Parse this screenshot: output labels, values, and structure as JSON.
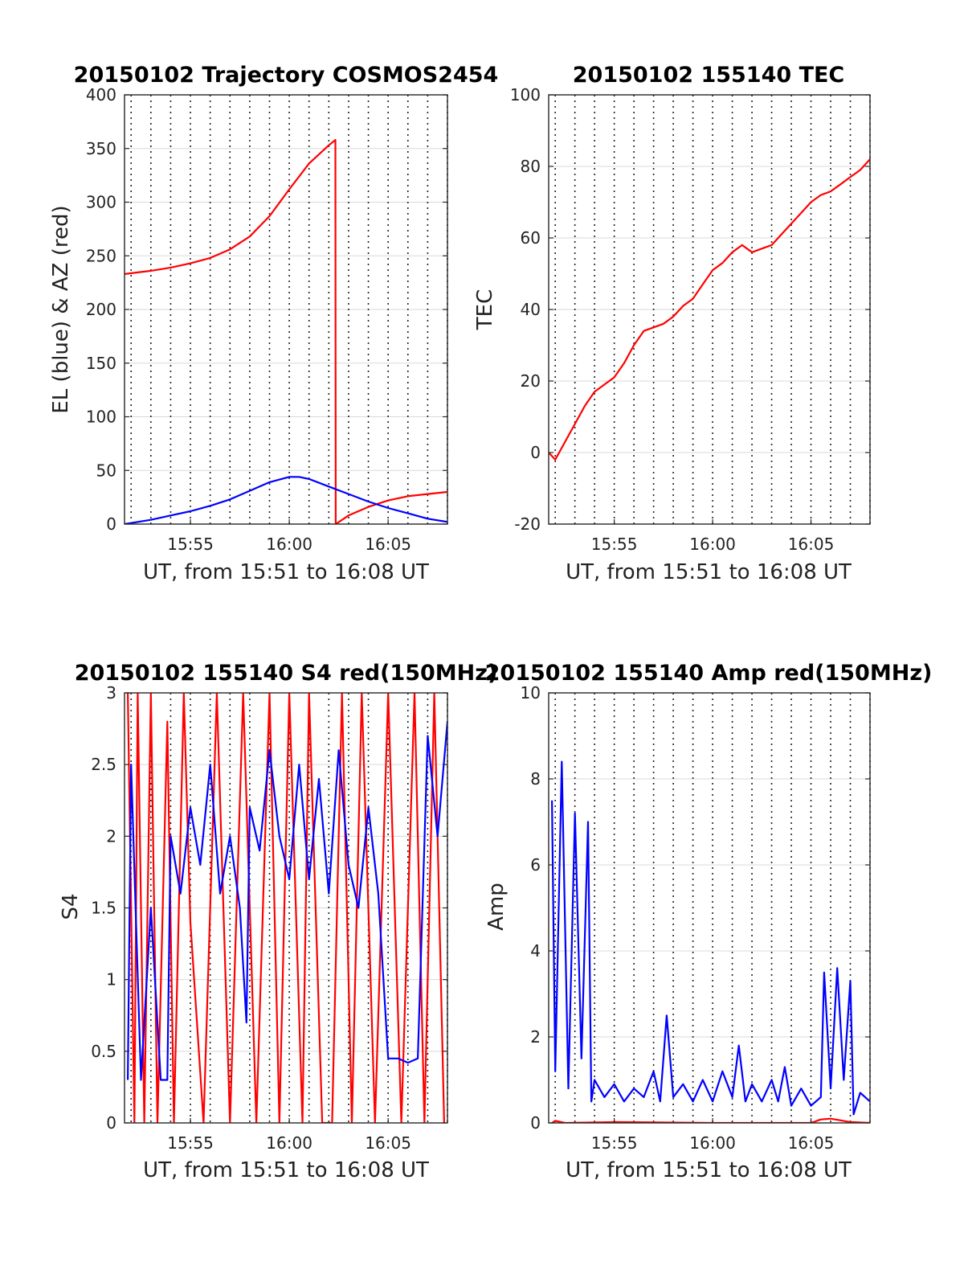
{
  "colors": {
    "red": "#ff0000",
    "blue": "#0000ff",
    "grid": "#d9d9d9",
    "axis": "#262626"
  },
  "chart_data": [
    {
      "type": "line",
      "title": "20150102 Trajectory COSMOS2454",
      "xlabel": "UT, from 15:51 to 16:08 UT",
      "ylabel": "EL (blue) & AZ (red)",
      "xlim": [
        "15:51:40",
        "16:08:00"
      ],
      "ylim": [
        0,
        400
      ],
      "yticks": [
        0,
        50,
        100,
        150,
        200,
        250,
        300,
        350,
        400
      ],
      "xticks": [
        "15:55",
        "16:00",
        "16:05"
      ],
      "grid": true,
      "series": [
        {
          "color": "#ff0000",
          "x": [
            "15:51:40",
            "15:53:00",
            "15:54:00",
            "15:55:00",
            "15:56:00",
            "15:57:00",
            "15:58:00",
            "15:59:00",
            "16:00:00",
            "16:01:00",
            "16:02:00",
            "16:02:20",
            "16:02:21",
            "16:03:00",
            "16:04:00",
            "16:05:00",
            "16:06:00",
            "16:07:00",
            "16:08:00"
          ],
          "y": [
            233,
            236,
            239,
            243,
            248,
            256,
            268,
            287,
            312,
            336,
            353,
            358,
            0,
            8,
            16,
            22,
            26,
            28,
            30
          ]
        },
        {
          "color": "#0000ff",
          "x": [
            "15:51:40",
            "15:53:00",
            "15:54:00",
            "15:55:00",
            "15:56:00",
            "15:57:00",
            "15:58:00",
            "15:59:00",
            "16:00:00",
            "16:00:30",
            "16:01:00",
            "16:02:00",
            "16:03:00",
            "16:04:00",
            "16:05:00",
            "16:06:00",
            "16:07:00",
            "16:08:00"
          ],
          "y": [
            0,
            4,
            8,
            12,
            17,
            23,
            31,
            39,
            44,
            44,
            42,
            35,
            28,
            21,
            15,
            10,
            5,
            2
          ]
        }
      ]
    },
    {
      "type": "line",
      "title": "20150102 155140 TEC",
      "xlabel": "UT, from 15:51 to 16:08 UT",
      "ylabel": "TEC",
      "xlim": [
        "15:51:40",
        "16:08:00"
      ],
      "ylim": [
        -20,
        100
      ],
      "yticks": [
        -20,
        0,
        20,
        40,
        60,
        80,
        100
      ],
      "xticks": [
        "15:55",
        "16:00",
        "16:05"
      ],
      "grid": true,
      "series": [
        {
          "color": "#ff0000",
          "x": [
            "15:51:40",
            "15:52:00",
            "15:52:30",
            "15:53:00",
            "15:53:30",
            "15:54:00",
            "15:54:30",
            "15:55:00",
            "15:55:30",
            "15:56:00",
            "15:56:30",
            "15:57:00",
            "15:57:30",
            "15:58:00",
            "15:58:30",
            "15:59:00",
            "15:59:30",
            "16:00:00",
            "16:00:30",
            "16:01:00",
            "16:01:30",
            "16:02:00",
            "16:02:30",
            "16:03:00",
            "16:03:30",
            "16:04:00",
            "16:04:30",
            "16:05:00",
            "16:05:30",
            "16:06:00",
            "16:06:30",
            "16:07:00",
            "16:07:30",
            "16:08:00"
          ],
          "y": [
            0,
            -2,
            3,
            8,
            13,
            17,
            19,
            21,
            25,
            30,
            34,
            35,
            36,
            38,
            41,
            43,
            47,
            51,
            53,
            56,
            58,
            56,
            57,
            58,
            61,
            64,
            67,
            70,
            72,
            73,
            75,
            77,
            79,
            82
          ]
        }
      ]
    },
    {
      "type": "line",
      "title": "20150102 155140 S4 red(150MHz)",
      "xlabel": "UT, from 15:51 to 16:08 UT",
      "ylabel": "S4",
      "xlim": [
        "15:51:40",
        "16:08:00"
      ],
      "ylim": [
        0,
        3
      ],
      "yticks": [
        0,
        0.5,
        1,
        1.5,
        2,
        2.5,
        3
      ],
      "xticks": [
        "15:55",
        "16:00",
        "16:05"
      ],
      "grid": true,
      "series": [
        {
          "color": "#ff0000",
          "x": [
            "15:51:50",
            "15:52:10",
            "15:52:20",
            "15:52:40",
            "15:53:00",
            "15:53:20",
            "15:53:50",
            "15:54:10",
            "15:54:40",
            "15:55:00",
            "15:55:40",
            "15:56:20",
            "15:57:00",
            "15:57:40",
            "15:58:20",
            "15:59:00",
            "15:59:30",
            "16:00:00",
            "16:00:40",
            "16:01:00",
            "16:01:40",
            "16:02:10",
            "16:02:40",
            "16:03:10",
            "16:03:40",
            "16:04:20",
            "16:05:00",
            "16:05:40",
            "16:06:20",
            "16:06:50",
            "16:07:20",
            "16:07:50"
          ],
          "y": [
            3,
            0,
            3,
            0,
            3,
            0,
            2.8,
            0,
            3,
            1.4,
            0,
            3,
            0,
            3,
            0,
            3,
            0,
            3,
            0,
            3,
            0,
            0,
            3,
            0,
            3,
            0,
            3,
            0,
            3,
            0,
            3,
            0
          ]
        },
        {
          "color": "#0000ff",
          "x": [
            "15:51:50",
            "15:52:00",
            "15:52:30",
            "15:53:00",
            "15:53:30",
            "15:53:50",
            "15:54:00",
            "15:54:30",
            "15:55:00",
            "15:55:30",
            "15:56:00",
            "15:56:30",
            "15:57:00",
            "15:57:30",
            "15:57:50",
            "15:58:00",
            "15:58:30",
            "15:59:00",
            "15:59:30",
            "16:00:00",
            "16:00:30",
            "16:01:00",
            "16:01:30",
            "16:02:00",
            "16:02:30",
            "16:03:00",
            "16:03:30",
            "16:04:00",
            "16:04:30",
            "16:05:00",
            "16:05:30",
            "16:06:00",
            "16:06:30",
            "16:07:00",
            "16:07:30",
            "16:08:00"
          ],
          "y": [
            0.3,
            2.5,
            0.3,
            1.5,
            0.3,
            0.3,
            2.0,
            1.6,
            2.2,
            1.8,
            2.5,
            1.6,
            2.0,
            1.5,
            0.7,
            2.2,
            1.9,
            2.6,
            2.0,
            1.7,
            2.5,
            1.7,
            2.4,
            1.6,
            2.6,
            1.8,
            1.5,
            2.2,
            1.6,
            0.45,
            0.45,
            0.42,
            0.45,
            2.7,
            2.0,
            2.8
          ]
        }
      ]
    },
    {
      "type": "line",
      "title": "20150102 155140 Amp red(150MHz)",
      "xlabel": "UT, from 15:51 to 16:08 UT",
      "ylabel": "Amp",
      "xlim": [
        "15:51:40",
        "16:08:00"
      ],
      "ylim": [
        0,
        10
      ],
      "yticks": [
        0,
        2,
        4,
        6,
        8,
        10
      ],
      "xticks": [
        "15:55",
        "16:00",
        "16:05"
      ],
      "grid": true,
      "series": [
        {
          "color": "#0000ff",
          "x": [
            "15:51:50",
            "15:52:00",
            "15:52:20",
            "15:52:40",
            "15:53:00",
            "15:53:20",
            "15:53:40",
            "15:53:50",
            "15:54:00",
            "15:54:30",
            "15:55:00",
            "15:55:30",
            "15:56:00",
            "15:56:30",
            "15:57:00",
            "15:57:20",
            "15:57:40",
            "15:58:00",
            "15:58:30",
            "15:59:00",
            "15:59:30",
            "16:00:00",
            "16:00:30",
            "16:01:00",
            "16:01:20",
            "16:01:40",
            "16:02:00",
            "16:02:30",
            "16:03:00",
            "16:03:20",
            "16:03:40",
            "16:04:00",
            "16:04:30",
            "16:05:00",
            "16:05:30",
            "16:05:40",
            "16:06:00",
            "16:06:20",
            "16:06:40",
            "16:07:00",
            "16:07:10",
            "16:07:30",
            "16:08:00"
          ],
          "y": [
            7.5,
            1.2,
            8.4,
            0.8,
            7.2,
            1.5,
            7.0,
            0.5,
            1.0,
            0.6,
            0.9,
            0.5,
            0.8,
            0.6,
            1.2,
            0.5,
            2.5,
            0.6,
            0.9,
            0.5,
            1.0,
            0.5,
            1.2,
            0.6,
            1.8,
            0.5,
            0.9,
            0.5,
            1.0,
            0.5,
            1.3,
            0.4,
            0.8,
            0.4,
            0.6,
            3.5,
            0.8,
            3.6,
            1.0,
            3.3,
            0.2,
            0.7,
            0.5
          ]
        },
        {
          "color": "#ff0000",
          "x": [
            "15:51:50",
            "15:52:00",
            "15:52:30",
            "15:55:00",
            "16:00:00",
            "16:05:00",
            "16:05:30",
            "16:06:00",
            "16:06:30",
            "16:07:00",
            "16:08:00"
          ],
          "y": [
            0.0,
            0.05,
            0.0,
            0.02,
            0.0,
            0.0,
            0.08,
            0.1,
            0.06,
            0.02,
            0.0
          ]
        }
      ]
    }
  ]
}
